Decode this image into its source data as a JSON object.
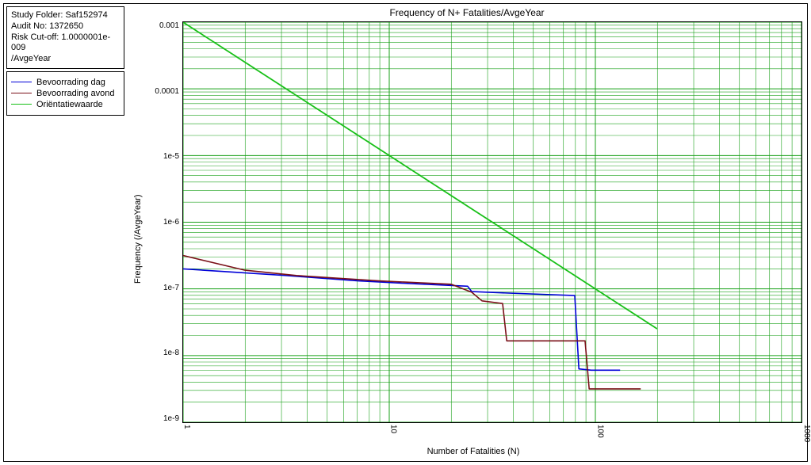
{
  "info": {
    "line1": "Study Folder: Saf152974",
    "line2": "Audit No: 1372650",
    "line3": "Risk Cut-off: 1.0000001e-009",
    "line4": "/AvgeYear"
  },
  "legend": {
    "items": [
      {
        "label": "Bevoorrading dag",
        "color": "#0000d8"
      },
      {
        "label": "Bevoorrading avond",
        "color": "#7a1018"
      },
      {
        "label": "Oriëntatiewaarde",
        "color": "#18c018"
      }
    ]
  },
  "chart": {
    "title": "Frequency of N+ Fatalities/AvgeYear",
    "xlabel": "Number of Fatalities (N)",
    "ylabel": "Frequency (/AvgeYear)",
    "x_log_min": 0,
    "x_log_max": 3,
    "y_log_min": -9,
    "y_log_max": -3,
    "x_ticks": [
      {
        "exp": 0,
        "label": "1"
      },
      {
        "exp": 1,
        "label": "10"
      },
      {
        "exp": 2,
        "label": "100"
      },
      {
        "exp": 3,
        "label": "1000"
      }
    ],
    "y_ticks": [
      {
        "exp": -3,
        "label": "0.001"
      },
      {
        "exp": -4,
        "label": "0.0001"
      },
      {
        "exp": -5,
        "label": "1e-5"
      },
      {
        "exp": -6,
        "label": "1e-6"
      },
      {
        "exp": -7,
        "label": "1e-7"
      },
      {
        "exp": -8,
        "label": "1e-8"
      },
      {
        "exp": -9,
        "label": "1e-9"
      }
    ],
    "grid_color": "#18a018",
    "major_grid_width": 1,
    "minor_grid_width": 0.6,
    "background": "#ffffff",
    "series": [
      {
        "name": "orientatiewaarde",
        "color": "#18c018",
        "width": 1.8,
        "points": [
          {
            "log_x": 0.0,
            "log_y": -3.0
          },
          {
            "log_x": 2.3,
            "log_y": -7.6
          }
        ]
      },
      {
        "name": "bevoorrading_dag",
        "color": "#0000d8",
        "width": 1.6,
        "points": [
          {
            "log_x": 0.0,
            "log_y": -6.7
          },
          {
            "log_x": 0.5,
            "log_y": -6.8
          },
          {
            "log_x": 0.85,
            "log_y": -6.88
          },
          {
            "log_x": 1.1,
            "log_y": -6.92
          },
          {
            "log_x": 1.38,
            "log_y": -6.96
          },
          {
            "log_x": 1.4,
            "log_y": -7.04
          },
          {
            "log_x": 1.55,
            "log_y": -7.06
          },
          {
            "log_x": 1.9,
            "log_y": -7.1
          },
          {
            "log_x": 1.92,
            "log_y": -8.2
          },
          {
            "log_x": 1.98,
            "log_y": -8.22
          },
          {
            "log_x": 2.12,
            "log_y": -8.22
          }
        ]
      },
      {
        "name": "bevoorrading_avond",
        "color": "#7a1018",
        "width": 1.6,
        "points": [
          {
            "log_x": 0.0,
            "log_y": -6.5
          },
          {
            "log_x": 0.3,
            "log_y": -6.72
          },
          {
            "log_x": 0.55,
            "log_y": -6.8
          },
          {
            "log_x": 0.95,
            "log_y": -6.88
          },
          {
            "log_x": 1.3,
            "log_y": -6.93
          },
          {
            "log_x": 1.4,
            "log_y": -7.05
          },
          {
            "log_x": 1.45,
            "log_y": -7.18
          },
          {
            "log_x": 1.55,
            "log_y": -7.22
          },
          {
            "log_x": 1.57,
            "log_y": -7.78
          },
          {
            "log_x": 1.95,
            "log_y": -7.78
          },
          {
            "log_x": 1.97,
            "log_y": -8.5
          },
          {
            "log_x": 2.22,
            "log_y": -8.5
          }
        ]
      }
    ]
  }
}
